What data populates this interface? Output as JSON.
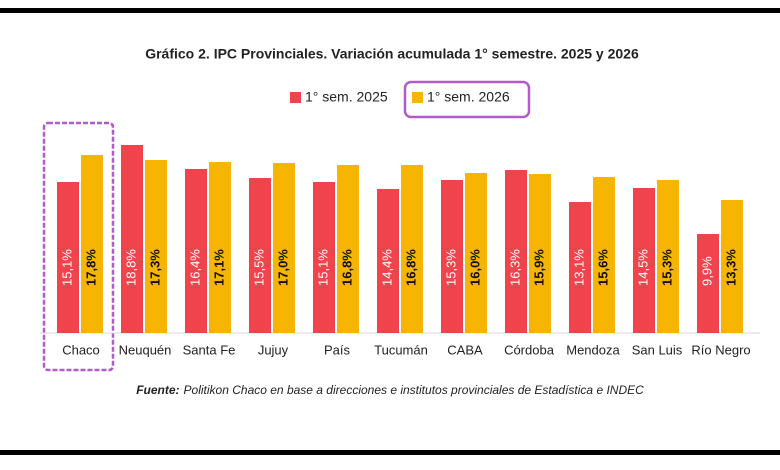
{
  "chart_data": {
    "type": "bar",
    "title": "Gráfico 2. IPC Provinciales. Variación acumulada 1° semestre. 2025 y 2026",
    "categories": [
      "Chaco",
      "Neuquén",
      "Santa Fe",
      "Jujuy",
      "País",
      "Tucumán",
      "CABA",
      "Córdoba",
      "Mendoza",
      "San Luis",
      "Río Negro"
    ],
    "series": [
      {
        "name": "1° sem. 2025",
        "color": "#f0434b",
        "values": [
          15.1,
          18.8,
          16.4,
          15.5,
          15.1,
          14.4,
          15.3,
          16.3,
          13.1,
          14.5,
          9.9
        ],
        "value_labels": [
          "15,1%",
          "18,8%",
          "16,4%",
          "15,5%",
          "15,1%",
          "14,4%",
          "15,3%",
          "16,3%",
          "13,1%",
          "14,5%",
          "9,9%"
        ]
      },
      {
        "name": "1° sem. 2026",
        "color": "#f7b500",
        "values": [
          17.8,
          17.3,
          17.1,
          17.0,
          16.8,
          16.8,
          16.0,
          15.9,
          15.6,
          15.3,
          13.3
        ],
        "value_labels": [
          "17,8%",
          "17,3%",
          "17,1%",
          "17,0%",
          "16,8%",
          "16,8%",
          "16,0%",
          "15,9%",
          "15,6%",
          "15,3%",
          "13,3%"
        ]
      }
    ],
    "source_label": "Fuente:",
    "source_text": "Politikon Chaco en base a direcciones e institutos provinciales de Estadística e INDEC"
  }
}
